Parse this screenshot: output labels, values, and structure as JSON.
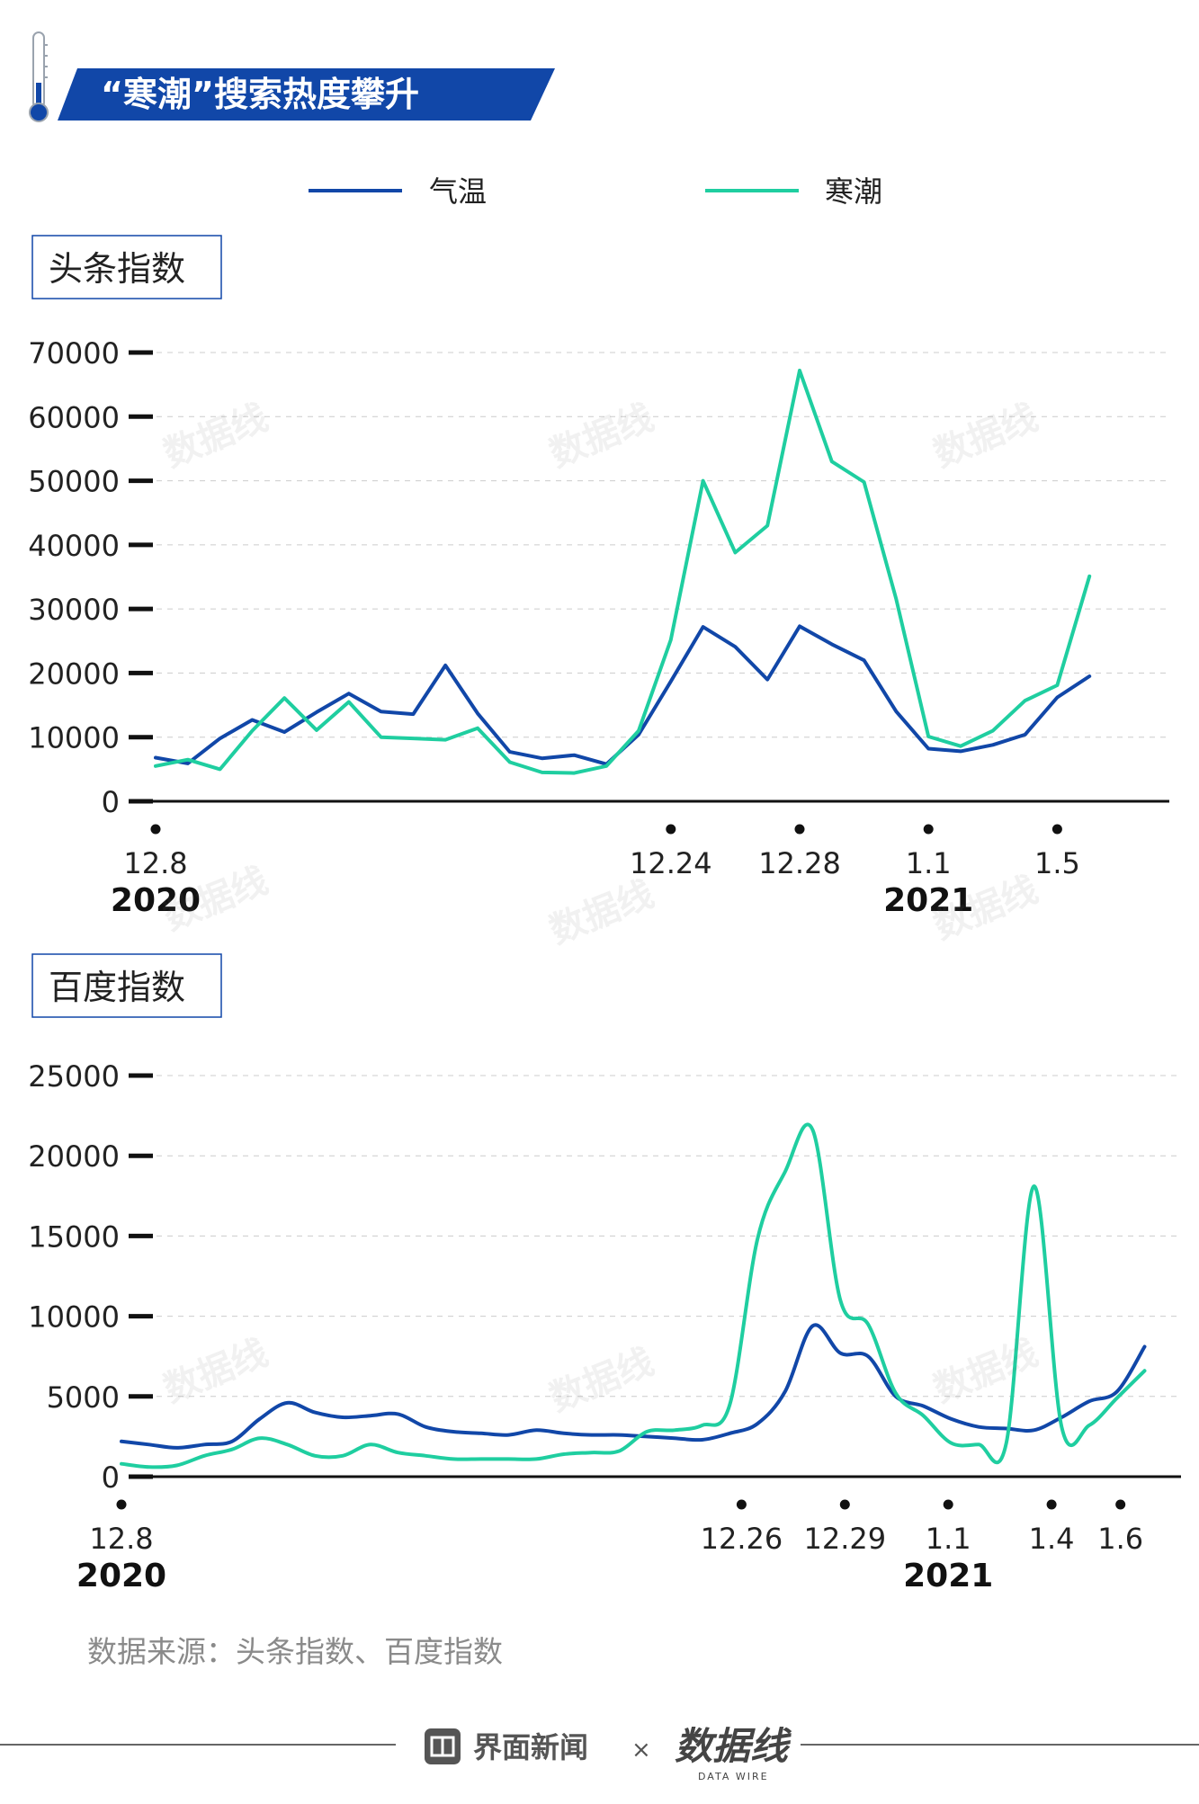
{
  "title": "“寒潮”搜索热度攀升",
  "legend": [
    {
      "label": "气温",
      "color": "#1147a8"
    },
    {
      "label": "寒潮",
      "color": "#1fcea0"
    }
  ],
  "colors": {
    "title_banner": "#1147a8",
    "axis": "#111111",
    "grid": "#cccccc"
  },
  "watermark_text": "数据线",
  "source_text": "数据来源：头条指数、百度指数",
  "footer": {
    "publisher": "界面新闻",
    "cross": "×",
    "partner": "数据线",
    "partner_sub": "DATA WIRE"
  },
  "chart_data": [
    {
      "type": "line",
      "title": "头条指数",
      "ylim": [
        0,
        70000
      ],
      "yticks": [
        "70000",
        "60000",
        "50000",
        "40000",
        "30000",
        "20000",
        "10000",
        "0"
      ],
      "grid": true,
      "x_start": "2020-12-08",
      "x_end": "2021-01-06",
      "x_tick_labels": [
        {
          "label": "12.8",
          "day": 0
        },
        {
          "label": "12.24",
          "day": 16
        },
        {
          "label": "12.28",
          "day": 20
        },
        {
          "label": "1.1",
          "day": 24
        },
        {
          "label": "1.5",
          "day": 28
        }
      ],
      "year_labels": [
        {
          "label": "2020",
          "day": 0
        },
        {
          "label": "2021",
          "day": 24
        }
      ],
      "series": [
        {
          "name": "气温",
          "color": "#1147a8",
          "values": [
            6800,
            5900,
            9800,
            12700,
            10800,
            13900,
            16800,
            14000,
            13600,
            21200,
            13700,
            7700,
            6700,
            7200,
            5800,
            10400,
            18700,
            27200,
            24100,
            19000,
            27300,
            24500,
            22000,
            14000,
            8200,
            7800,
            8800,
            10400,
            16200,
            19500
          ]
        },
        {
          "name": "寒潮",
          "color": "#1fcea0",
          "values": [
            5500,
            6500,
            5000,
            11000,
            16100,
            11100,
            15500,
            10000,
            9800,
            9600,
            11400,
            6100,
            4500,
            4400,
            5500,
            11000,
            25200,
            50000,
            38800,
            43000,
            67200,
            53000,
            49800,
            31500,
            10100,
            8600,
            11000,
            15700,
            18100,
            35100
          ]
        }
      ]
    },
    {
      "type": "line",
      "title": "百度指数",
      "ylim": [
        0,
        25000
      ],
      "yticks": [
        "25000",
        "20000",
        "15000",
        "10000",
        "5000",
        "0"
      ],
      "grid": true,
      "x_start": "2020-12-08",
      "x_end": "2021-01-07",
      "x_tick_labels": [
        {
          "label": "12.8",
          "day": 0
        },
        {
          "label": "12.26",
          "day": 18
        },
        {
          "label": "12.29",
          "day": 21
        },
        {
          "label": "1.1",
          "day": 24
        },
        {
          "label": "1.4",
          "day": 27
        },
        {
          "label": "1.6",
          "day": 29
        }
      ],
      "year_labels": [
        {
          "label": "2020",
          "day": 0
        },
        {
          "label": "2021",
          "day": 24
        }
      ],
      "series": [
        {
          "name": "气温",
          "color": "#1147a8",
          "values": [
            2200,
            2000,
            1800,
            2000,
            2200,
            3600,
            4600,
            4000,
            3700,
            3800,
            3900,
            3100,
            2800,
            2700,
            2600,
            2900,
            2700,
            2600,
            2600,
            2500,
            2400,
            2300,
            2700,
            3300,
            5300,
            9400,
            7700,
            7500,
            5000,
            4400,
            3600,
            3100,
            3000,
            2900,
            3700,
            4700,
            5300,
            8100
          ]
        },
        {
          "name": "寒潮",
          "color": "#1fcea0",
          "values": [
            800,
            600,
            700,
            1300,
            1700,
            2400,
            2000,
            1300,
            1300,
            2000,
            1500,
            1300,
            1100,
            1100,
            1100,
            1100,
            1400,
            1500,
            1600,
            2800,
            2900,
            3200,
            4500,
            14800,
            19000,
            21600,
            11000,
            9500,
            5200,
            3800,
            2100,
            2000,
            2100,
            18100,
            3100,
            3200,
            4900,
            6600
          ]
        }
      ]
    }
  ]
}
